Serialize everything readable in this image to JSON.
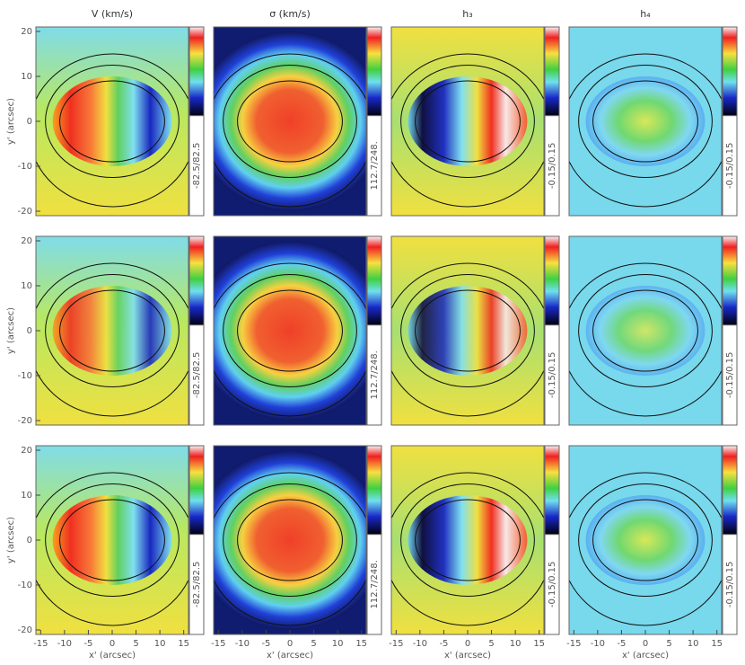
{
  "chart_data": [
    {
      "type": "map",
      "title": "V (km/s)",
      "colorbar_label": "-82.5/82.5",
      "xlim": [
        -16,
        16
      ],
      "ylim": [
        -21,
        21
      ],
      "yticks": [
        -20,
        -10,
        0,
        10,
        20
      ],
      "ylabel": "y' (arcsec)"
    },
    {
      "type": "map",
      "title": "σ (km/s)",
      "colorbar_label": "112.7/248.",
      "xlim": [
        -16,
        16
      ],
      "ylim": [
        -21,
        21
      ]
    },
    {
      "type": "map",
      "title": "h₃",
      "colorbar_label": "-0.15/0.15",
      "xlim": [
        -16,
        16
      ],
      "ylim": [
        -21,
        21
      ]
    },
    {
      "type": "map",
      "title": "h₄",
      "colorbar_label": "-0.15/0.15",
      "xlim": [
        -16,
        16
      ],
      "ylim": [
        -21,
        21
      ]
    },
    {
      "type": "map",
      "colorbar_label": "-82.5/82.5",
      "xlim": [
        -16,
        16
      ],
      "ylim": [
        -21,
        21
      ],
      "yticks": [
        -20,
        -10,
        0,
        10,
        20
      ],
      "ylabel": "y' (arcsec)"
    },
    {
      "type": "map",
      "colorbar_label": "112.7/248.",
      "xlim": [
        -16,
        16
      ],
      "ylim": [
        -21,
        21
      ]
    },
    {
      "type": "map",
      "colorbar_label": "-0.15/0.15",
      "xlim": [
        -16,
        16
      ],
      "ylim": [
        -21,
        21
      ]
    },
    {
      "type": "map",
      "colorbar_label": "-0.15/0.15",
      "xlim": [
        -16,
        16
      ],
      "ylim": [
        -21,
        21
      ]
    },
    {
      "type": "map",
      "colorbar_label": "-82.5/82.5",
      "xlim": [
        -16,
        16
      ],
      "ylim": [
        -21,
        21
      ],
      "yticks": [
        -20,
        -10,
        0,
        10,
        20
      ],
      "ylabel": "y' (arcsec)",
      "xticks": [
        -15,
        -10,
        -5,
        0,
        5,
        10,
        15
      ],
      "xlabel": "x' (arcsec)"
    },
    {
      "type": "map",
      "colorbar_label": "112.7/248.",
      "xlim": [
        -16,
        16
      ],
      "ylim": [
        -21,
        21
      ],
      "xticks": [
        -15,
        -10,
        -5,
        0,
        5,
        10,
        15
      ],
      "xlabel": "x' (arcsec)"
    },
    {
      "type": "map",
      "colorbar_label": "-0.15/0.15",
      "xlim": [
        -16,
        16
      ],
      "ylim": [
        -21,
        21
      ],
      "xticks": [
        -15,
        -10,
        -5,
        0,
        5,
        10,
        15
      ],
      "xlabel": "x' (arcsec)"
    },
    {
      "type": "map",
      "colorbar_label": "-0.15/0.15",
      "xlim": [
        -16,
        16
      ],
      "ylim": [
        -21,
        21
      ],
      "xticks": [
        -15,
        -10,
        -5,
        0,
        5,
        10,
        15
      ],
      "xlabel": "x' (arcsec)"
    }
  ]
}
